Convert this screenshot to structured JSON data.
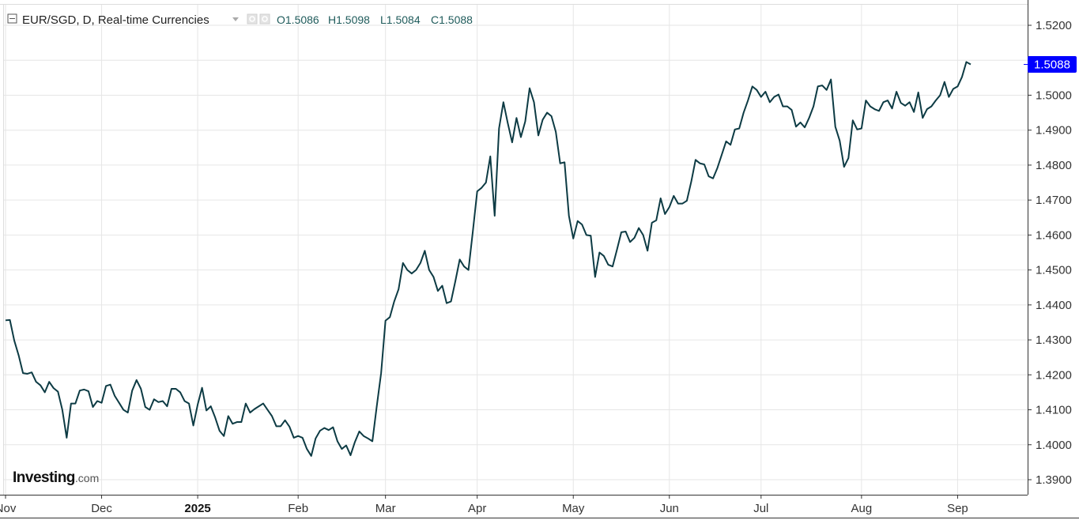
{
  "header": {
    "title": "EUR/SGD, D, Real-time Currencies",
    "ohlc": [
      {
        "key": "O",
        "value": "1.5086"
      },
      {
        "key": "H",
        "value": "1.5098"
      },
      {
        "key": "L",
        "value": "1.5084"
      },
      {
        "key": "C",
        "value": "1.5088"
      }
    ]
  },
  "brand": {
    "main": "Investing",
    "sub": ".com"
  },
  "colors": {
    "line": "#0d3b44",
    "price_tag": "#0000ff",
    "grid": "#e6e6e6"
  },
  "chart_data": {
    "type": "line",
    "title": "EUR/SGD, D, Real-time Currencies",
    "ylim": [
      1.385,
      1.525
    ],
    "y_ticks": [
      "1.3900",
      "1.4000",
      "1.4100",
      "1.4200",
      "1.4300",
      "1.4400",
      "1.4500",
      "1.4600",
      "1.4700",
      "1.4800",
      "1.4900",
      "1.5000",
      "1.5100",
      "1.5200"
    ],
    "x_ticks": [
      {
        "label": "Nov",
        "pos": 0,
        "bold": false
      },
      {
        "label": "Dec",
        "pos": 22,
        "bold": false
      },
      {
        "label": "2025",
        "pos": 44,
        "bold": true
      },
      {
        "label": "Feb",
        "pos": 67,
        "bold": false
      },
      {
        "label": "Mar",
        "pos": 87,
        "bold": false
      },
      {
        "label": "Apr",
        "pos": 108,
        "bold": false
      },
      {
        "label": "May",
        "pos": 130,
        "bold": false
      },
      {
        "label": "Jun",
        "pos": 152,
        "bold": false
      },
      {
        "label": "Jul",
        "pos": 173,
        "bold": false
      },
      {
        "label": "Aug",
        "pos": 196,
        "bold": false
      },
      {
        "label": "Sep",
        "pos": 218,
        "bold": false
      }
    ],
    "last_price": "1.5088",
    "grid": true,
    "series": [
      {
        "values": [
          1.4356,
          1.4357,
          1.4298,
          1.4256,
          1.4205,
          1.4203,
          1.4207,
          1.418,
          1.417,
          1.415,
          1.418,
          1.4162,
          1.4152,
          1.41,
          1.402,
          1.4118,
          1.4118,
          1.4155,
          1.4158,
          1.4153,
          1.4108,
          1.4125,
          1.412,
          1.4168,
          1.4172,
          1.414,
          1.412,
          1.41,
          1.4092,
          1.4155,
          1.4185,
          1.416,
          1.4108,
          1.41,
          1.413,
          1.4122,
          1.4125,
          1.411,
          1.416,
          1.416,
          1.415,
          1.4125,
          1.4118,
          1.4055,
          1.4115,
          1.4163,
          1.4098,
          1.411,
          1.4078,
          1.404,
          1.4025,
          1.4082,
          1.406,
          1.4065,
          1.4065,
          1.4118,
          1.4092,
          1.4102,
          1.411,
          1.4118,
          1.41,
          1.4082,
          1.4053,
          1.4053,
          1.407,
          1.4052,
          1.402,
          1.4025,
          1.402,
          1.3988,
          1.3968,
          1.4018,
          1.404,
          1.4048,
          1.4042,
          1.405,
          1.401,
          1.3988,
          1.3998,
          1.397,
          1.4008,
          1.4038,
          1.4025,
          1.4018,
          1.401,
          1.411,
          1.4205,
          1.4355,
          1.4365,
          1.441,
          1.4445,
          1.452,
          1.45,
          1.449,
          1.45,
          1.452,
          1.4555,
          1.45,
          1.448,
          1.444,
          1.4455,
          1.4405,
          1.441,
          1.4468,
          1.453,
          1.451,
          1.45,
          1.461,
          1.4725,
          1.4735,
          1.475,
          1.4825,
          1.4655,
          1.4905,
          1.498,
          1.492,
          1.4865,
          1.4935,
          1.488,
          1.4925,
          1.502,
          1.498,
          1.4885,
          1.493,
          1.495,
          1.494,
          1.4895,
          1.4805,
          1.4808,
          1.4655,
          1.459,
          1.464,
          1.463,
          1.46,
          1.4598,
          1.448,
          1.455,
          1.454,
          1.4515,
          1.451,
          1.4558,
          1.4608,
          1.461,
          1.458,
          1.4592,
          1.462,
          1.46,
          1.4555,
          1.4635,
          1.4642,
          1.4705,
          1.466,
          1.468,
          1.4712,
          1.469,
          1.469,
          1.4698,
          1.4752,
          1.4815,
          1.4805,
          1.4802,
          1.4768,
          1.4762,
          1.4792,
          1.483,
          1.4868,
          1.4858,
          1.4902,
          1.4905,
          1.495,
          1.4985,
          1.5025,
          1.5015,
          1.4995,
          1.501,
          1.498,
          1.4995,
          1.5002,
          1.4968,
          1.4968,
          1.4958,
          1.491,
          1.4922,
          1.4908,
          1.4935,
          1.4968,
          1.5025,
          1.5028,
          1.5015,
          1.5045,
          1.491,
          1.487,
          1.4795,
          1.482,
          1.4928,
          1.4902,
          1.4905,
          1.4985,
          1.4968,
          1.496,
          1.4955,
          1.498,
          1.4985,
          1.4962,
          1.501,
          1.4978,
          1.497,
          1.498,
          1.4952,
          1.5008,
          1.4935,
          1.496,
          1.4968,
          1.4985,
          1.5,
          1.5038,
          1.4995,
          1.5018,
          1.5025,
          1.5052,
          1.5095,
          1.5088
        ]
      }
    ]
  }
}
